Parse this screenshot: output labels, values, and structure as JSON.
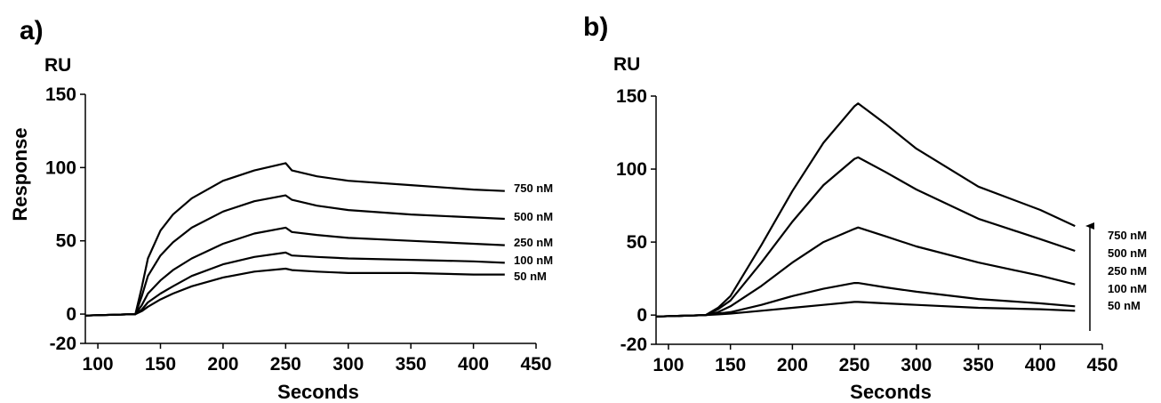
{
  "chart_data": [
    {
      "type": "line",
      "panel_label": "a)",
      "y_unit": "RU",
      "ylabel": "Response",
      "xlabel": "Seconds",
      "xlim": [
        90,
        450
      ],
      "ylim": [
        -20,
        150
      ],
      "xticks": [
        100,
        150,
        200,
        250,
        300,
        350,
        400,
        450
      ],
      "yticks": [
        150,
        100,
        50,
        0,
        -20
      ],
      "grid": false,
      "series": [
        {
          "name": "750 nM",
          "x": [
            90,
            130,
            135,
            140,
            150,
            160,
            175,
            200,
            225,
            250,
            255,
            275,
            300,
            350,
            400,
            425
          ],
          "y": [
            -1,
            0,
            18,
            38,
            57,
            68,
            79,
            91,
            98,
            103,
            98,
            94,
            91,
            88,
            85,
            84
          ]
        },
        {
          "name": "500 nM",
          "x": [
            90,
            130,
            135,
            140,
            150,
            160,
            175,
            200,
            225,
            250,
            255,
            275,
            300,
            350,
            400,
            425
          ],
          "y": [
            -1,
            0,
            12,
            26,
            40,
            49,
            59,
            70,
            77,
            81,
            78,
            74,
            71,
            68,
            66,
            65
          ]
        },
        {
          "name": "250 nM",
          "x": [
            90,
            130,
            135,
            140,
            150,
            160,
            175,
            200,
            225,
            250,
            255,
            275,
            300,
            350,
            400,
            425
          ],
          "y": [
            -1,
            0,
            6,
            14,
            23,
            30,
            38,
            48,
            55,
            59,
            56,
            54,
            52,
            50,
            48,
            47
          ]
        },
        {
          "name": "100 nM",
          "x": [
            90,
            130,
            135,
            140,
            150,
            160,
            175,
            200,
            225,
            250,
            255,
            275,
            300,
            350,
            400,
            425
          ],
          "y": [
            -1,
            0,
            3,
            8,
            14,
            19,
            26,
            34,
            39,
            42,
            40,
            39,
            38,
            37,
            36,
            35
          ]
        },
        {
          "name": "50 nM",
          "x": [
            90,
            130,
            135,
            140,
            150,
            160,
            175,
            200,
            225,
            250,
            255,
            275,
            300,
            350,
            400,
            425
          ],
          "y": [
            -1,
            0,
            2,
            5,
            10,
            14,
            19,
            25,
            29,
            31,
            30,
            29,
            28,
            28,
            27,
            27
          ]
        }
      ]
    },
    {
      "type": "line",
      "panel_label": "b)",
      "y_unit": "RU",
      "ylabel": "",
      "xlabel": "Seconds",
      "xlim": [
        90,
        450
      ],
      "ylim": [
        -20,
        150
      ],
      "xticks": [
        100,
        150,
        200,
        250,
        300,
        350,
        400,
        450
      ],
      "yticks": [
        150,
        100,
        50,
        0,
        -20
      ],
      "grid": false,
      "series": [
        {
          "name": "750 nM",
          "x": [
            90,
            130,
            140,
            150,
            175,
            200,
            225,
            250,
            253,
            275,
            300,
            350,
            400,
            428
          ],
          "y": [
            -1,
            0,
            5,
            13,
            48,
            85,
            118,
            143,
            145,
            131,
            114,
            88,
            72,
            61
          ]
        },
        {
          "name": "500 nM",
          "x": [
            90,
            130,
            140,
            150,
            175,
            200,
            225,
            250,
            253,
            275,
            300,
            350,
            400,
            428
          ],
          "y": [
            -1,
            0,
            4,
            10,
            36,
            64,
            89,
            107,
            108,
            98,
            86,
            66,
            52,
            44
          ]
        },
        {
          "name": "250 nM",
          "x": [
            90,
            130,
            140,
            150,
            175,
            200,
            225,
            250,
            253,
            275,
            300,
            350,
            400,
            428
          ],
          "y": [
            -1,
            0,
            2,
            6,
            20,
            36,
            50,
            59,
            60,
            54,
            47,
            36,
            27,
            21
          ]
        },
        {
          "name": "100 nM",
          "x": [
            90,
            130,
            140,
            150,
            175,
            200,
            225,
            250,
            253,
            275,
            300,
            350,
            400,
            428
          ],
          "y": [
            -1,
            0,
            1,
            2,
            7,
            13,
            18,
            22,
            22,
            19,
            16,
            11,
            8,
            6
          ]
        },
        {
          "name": "50 nM",
          "x": [
            90,
            130,
            140,
            150,
            175,
            200,
            225,
            250,
            253,
            275,
            300,
            350,
            400,
            428
          ],
          "y": [
            -1,
            0,
            0.5,
            1,
            3,
            5,
            7,
            9,
            9,
            8,
            7,
            5,
            4,
            3
          ]
        }
      ],
      "arrow": "up"
    }
  ]
}
